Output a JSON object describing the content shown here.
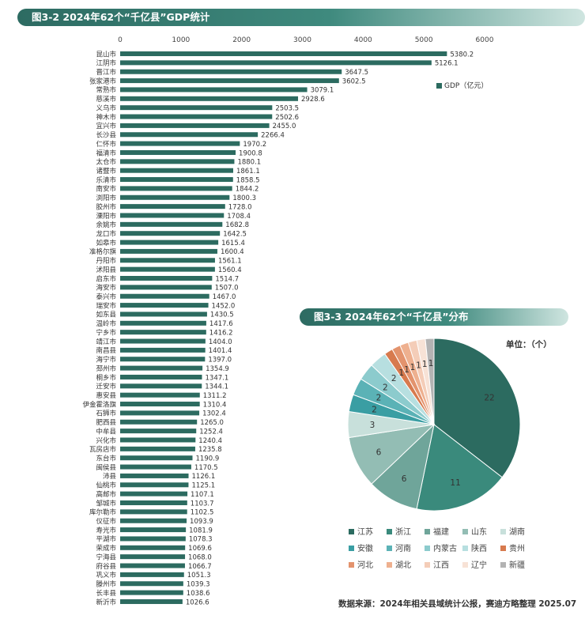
{
  "chart1": {
    "title": "图3-2  2024年62个“千亿县”GDP统计",
    "legend": "GDP（亿元）",
    "bar_color": "#2c6b60",
    "chart_data": {
      "type": "bar",
      "orientation": "horizontal",
      "title": "图3-2  2024年62个“千亿县”GDP统计",
      "xlim": [
        0,
        6000
      ],
      "xticks": [
        0,
        1000,
        2000,
        3000,
        4000,
        5000,
        6000
      ],
      "series": [
        {
          "name": "GDP（亿元）"
        }
      ],
      "categories": [
        "昆山市",
        "江阴市",
        "晋江市",
        "张家港市",
        "常熟市",
        "慈溪市",
        "义乌市",
        "神木市",
        "宜兴市",
        "长沙县",
        "仁怀市",
        "福清市",
        "太仓市",
        "诸暨市",
        "乐清市",
        "南安市",
        "浏阳市",
        "胶州市",
        "溧阳市",
        "余姚市",
        "龙口市",
        "如皋市",
        "准格尔旗",
        "丹阳市",
        "沭阳县",
        "启东市",
        "海安市",
        "泰兴市",
        "瑞安市",
        "如东县",
        "温岭市",
        "宁乡市",
        "靖江市",
        "南昌县",
        "海宁市",
        "邳州市",
        "桐乡市",
        "迁安市",
        "惠安县",
        "伊金霍洛旗",
        "石狮市",
        "肥西县",
        "中牟县",
        "兴化市",
        "瓦房店市",
        "东台市",
        "闽侯县",
        "沛县",
        "仙桃市",
        "高邮市",
        "邹城市",
        "库尔勒市",
        "仪征市",
        "寿光市",
        "平湖市",
        "荣成市",
        "宁海县",
        "府谷县",
        "巩义市",
        "滕州市",
        "长丰县",
        "新沂市"
      ],
      "values": [
        5380.2,
        5126.1,
        3647.5,
        3602.5,
        3079.1,
        2928.6,
        2503.5,
        2502.6,
        2455.0,
        2266.4,
        1970.2,
        1900.8,
        1880.1,
        1861.1,
        1858.5,
        1844.2,
        1800.3,
        1728.0,
        1708.4,
        1682.8,
        1642.5,
        1615.4,
        1600.4,
        1561.1,
        1560.4,
        1514.7,
        1507.0,
        1467.0,
        1452.0,
        1430.5,
        1417.6,
        1416.2,
        1404.0,
        1401.4,
        1397.0,
        1354.9,
        1347.1,
        1344.1,
        1311.2,
        1310.4,
        1302.4,
        1265.0,
        1252.4,
        1240.4,
        1235.8,
        1190.9,
        1170.5,
        1126.1,
        1125.1,
        1107.1,
        1103.7,
        1102.5,
        1093.9,
        1081.9,
        1078.3,
        1069.6,
        1068.0,
        1066.7,
        1051.3,
        1039.3,
        1038.6,
        1026.6
      ]
    }
  },
  "chart2": {
    "title": "图3-3  2024年62个“千亿县”分布",
    "unit_label": "单位：（个）",
    "chart_data": {
      "type": "pie",
      "title": "图3-3  2024年62个“千亿县”分布",
      "slices": [
        {
          "label": "江苏",
          "value": 22,
          "color": "#2c6b60"
        },
        {
          "label": "浙江",
          "value": 11,
          "color": "#3a8a7c"
        },
        {
          "label": "福建",
          "value": 6,
          "color": "#6fa59a"
        },
        {
          "label": "山东",
          "value": 6,
          "color": "#93bdb4"
        },
        {
          "label": "湖南",
          "value": 3,
          "color": "#c8e0db"
        },
        {
          "label": "安徽",
          "value": 2,
          "color": "#3a9ea3"
        },
        {
          "label": "河南",
          "value": 2,
          "color": "#5bb2b6"
        },
        {
          "label": "内蒙古",
          "value": 2,
          "color": "#8ccbcd"
        },
        {
          "label": "陕西",
          "value": 2,
          "color": "#b7dfe0"
        },
        {
          "label": "贵州",
          "value": 1,
          "color": "#d77a4e"
        },
        {
          "label": "河北",
          "value": 1,
          "color": "#e3936d"
        },
        {
          "label": "湖北",
          "value": 1,
          "color": "#eeb08f"
        },
        {
          "label": "江西",
          "value": 1,
          "color": "#f4cdb8"
        },
        {
          "label": "辽宁",
          "value": 1,
          "color": "#f7e2d6"
        },
        {
          "label": "新疆",
          "value": 1,
          "color": "#b3b3b3"
        }
      ]
    }
  },
  "source": "数据来源：2024年相关县域统计公报，赛迪方略整理 2025.07"
}
